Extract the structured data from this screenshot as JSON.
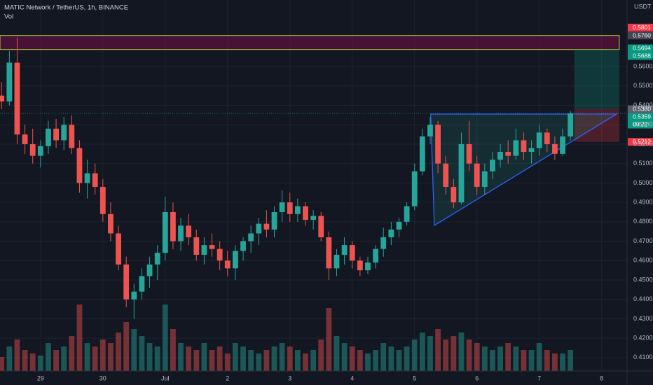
{
  "chart_data": {
    "type": "candlestick",
    "title": "MATIC Network / TetherUS, 1h, BINANCE",
    "volume_label": "Vol",
    "axis_unit": "USDT",
    "colors": {
      "up": "#26a69a",
      "down": "#ef5350"
    },
    "grid": true,
    "xlim": [
      8.4,
      249.8
    ],
    "ylim": [
      0.4031,
      0.5943
    ],
    "vlim": [
      0,
      100
    ],
    "xticks": [
      {
        "value": 24,
        "label": "29"
      },
      {
        "value": 48,
        "label": "30"
      },
      {
        "value": 72,
        "label": "Jul"
      },
      {
        "value": 96,
        "label": "2"
      },
      {
        "value": 120,
        "label": "3"
      },
      {
        "value": 144,
        "label": "4"
      },
      {
        "value": 168,
        "label": "5"
      },
      {
        "value": 192,
        "label": "6"
      },
      {
        "value": 216,
        "label": "7"
      },
      {
        "value": 240,
        "label": "8"
      }
    ],
    "yticks": [
      {
        "value": 0.56,
        "label": "0.5600"
      },
      {
        "value": 0.55,
        "label": "0.5500"
      },
      {
        "value": 0.54,
        "label": "0.5400"
      },
      {
        "value": 0.53,
        "label": "0.5300"
      },
      {
        "value": 0.52,
        "label": "0.5200"
      },
      {
        "value": 0.51,
        "label": "0.5100"
      },
      {
        "value": 0.5,
        "label": "0.5000"
      },
      {
        "value": 0.49,
        "label": "0.4900"
      },
      {
        "value": 0.48,
        "label": "0.4800"
      },
      {
        "value": 0.47,
        "label": "0.4700"
      },
      {
        "value": 0.46,
        "label": "0.4600"
      },
      {
        "value": 0.45,
        "label": "0.4500"
      },
      {
        "value": 0.44,
        "label": "0.4400"
      },
      {
        "value": 0.43,
        "label": "0.4300"
      },
      {
        "value": 0.42,
        "label": "0.4200"
      },
      {
        "value": 0.41,
        "label": "0.4100"
      }
    ],
    "x": [
      9,
      12,
      15,
      18,
      21,
      24,
      27,
      30,
      33,
      36,
      39,
      42,
      45,
      48,
      51,
      54,
      57,
      60,
      63,
      66,
      69,
      72,
      75,
      78,
      81,
      84,
      87,
      90,
      93,
      96,
      99,
      102,
      105,
      108,
      111,
      114,
      117,
      120,
      123,
      126,
      129,
      132,
      135,
      138,
      141,
      144,
      147,
      150,
      153,
      156,
      159,
      162,
      165,
      168,
      171,
      174,
      177,
      180,
      183,
      186,
      189,
      192,
      195,
      198,
      201,
      204,
      207,
      210,
      213,
      216,
      219,
      222,
      225,
      228
    ],
    "ohlc": [
      [
        0.545,
        0.552,
        0.538,
        0.542
      ],
      [
        0.542,
        0.568,
        0.54,
        0.562
      ],
      [
        0.562,
        0.575,
        0.52,
        0.525
      ],
      [
        0.525,
        0.53,
        0.515,
        0.52
      ],
      [
        0.52,
        0.528,
        0.51,
        0.514
      ],
      [
        0.514,
        0.522,
        0.508,
        0.519
      ],
      [
        0.519,
        0.532,
        0.515,
        0.528
      ],
      [
        0.528,
        0.533,
        0.518,
        0.522
      ],
      [
        0.522,
        0.534,
        0.517,
        0.53
      ],
      [
        0.53,
        0.535,
        0.515,
        0.518
      ],
      [
        0.518,
        0.522,
        0.495,
        0.5
      ],
      [
        0.5,
        0.512,
        0.492,
        0.505
      ],
      [
        0.505,
        0.51,
        0.494,
        0.498
      ],
      [
        0.498,
        0.502,
        0.48,
        0.484
      ],
      [
        0.484,
        0.49,
        0.47,
        0.474
      ],
      [
        0.474,
        0.478,
        0.455,
        0.458
      ],
      [
        0.458,
        0.462,
        0.436,
        0.44
      ],
      [
        0.44,
        0.448,
        0.43,
        0.444
      ],
      [
        0.444,
        0.456,
        0.44,
        0.452
      ],
      [
        0.452,
        0.462,
        0.446,
        0.458
      ],
      [
        0.458,
        0.468,
        0.45,
        0.464
      ],
      [
        0.464,
        0.493,
        0.46,
        0.485
      ],
      [
        0.485,
        0.49,
        0.466,
        0.47
      ],
      [
        0.47,
        0.482,
        0.465,
        0.478
      ],
      [
        0.478,
        0.484,
        0.468,
        0.472
      ],
      [
        0.472,
        0.476,
        0.46,
        0.463
      ],
      [
        0.463,
        0.472,
        0.458,
        0.468
      ],
      [
        0.468,
        0.474,
        0.462,
        0.466
      ],
      [
        0.466,
        0.47,
        0.455,
        0.46
      ],
      [
        0.46,
        0.465,
        0.452,
        0.456
      ],
      [
        0.456,
        0.468,
        0.45,
        0.465
      ],
      [
        0.465,
        0.472,
        0.46,
        0.47
      ],
      [
        0.47,
        0.478,
        0.464,
        0.474
      ],
      [
        0.474,
        0.482,
        0.468,
        0.479
      ],
      [
        0.479,
        0.486,
        0.472,
        0.476
      ],
      [
        0.476,
        0.488,
        0.472,
        0.485
      ],
      [
        0.485,
        0.496,
        0.48,
        0.49
      ],
      [
        0.49,
        0.495,
        0.48,
        0.484
      ],
      [
        0.484,
        0.492,
        0.48,
        0.488
      ],
      [
        0.488,
        0.49,
        0.478,
        0.481
      ],
      [
        0.481,
        0.486,
        0.476,
        0.483
      ],
      [
        0.483,
        0.485,
        0.47,
        0.472
      ],
      [
        0.472,
        0.475,
        0.45,
        0.456
      ],
      [
        0.456,
        0.466,
        0.452,
        0.463
      ],
      [
        0.463,
        0.472,
        0.458,
        0.468
      ],
      [
        0.468,
        0.47,
        0.456,
        0.46
      ],
      [
        0.46,
        0.462,
        0.452,
        0.455
      ],
      [
        0.455,
        0.462,
        0.453,
        0.459
      ],
      [
        0.459,
        0.468,
        0.456,
        0.466
      ],
      [
        0.466,
        0.477,
        0.462,
        0.472
      ],
      [
        0.472,
        0.48,
        0.468,
        0.476
      ],
      [
        0.476,
        0.482,
        0.472,
        0.48
      ],
      [
        0.48,
        0.49,
        0.478,
        0.488
      ],
      [
        0.488,
        0.51,
        0.486,
        0.506
      ],
      [
        0.506,
        0.528,
        0.504,
        0.524
      ],
      [
        0.524,
        0.534,
        0.52,
        0.53
      ],
      [
        0.53,
        0.532,
        0.505,
        0.51
      ],
      [
        0.51,
        0.514,
        0.494,
        0.498
      ],
      [
        0.498,
        0.502,
        0.487,
        0.49
      ],
      [
        0.49,
        0.526,
        0.489,
        0.52
      ],
      [
        0.52,
        0.532,
        0.506,
        0.51
      ],
      [
        0.51,
        0.514,
        0.494,
        0.498
      ],
      [
        0.498,
        0.51,
        0.494,
        0.506
      ],
      [
        0.506,
        0.516,
        0.502,
        0.512
      ],
      [
        0.512,
        0.52,
        0.508,
        0.516
      ],
      [
        0.516,
        0.522,
        0.51,
        0.514
      ],
      [
        0.514,
        0.528,
        0.512,
        0.522
      ],
      [
        0.522,
        0.526,
        0.512,
        0.516
      ],
      [
        0.516,
        0.522,
        0.51,
        0.518
      ],
      [
        0.518,
        0.53,
        0.514,
        0.526
      ],
      [
        0.526,
        0.528,
        0.516,
        0.52
      ],
      [
        0.52,
        0.524,
        0.512,
        0.515
      ],
      [
        0.515,
        0.528,
        0.514,
        0.524
      ],
      [
        0.524,
        0.5372,
        0.522,
        0.5359
      ]
    ],
    "volume": [
      20,
      35,
      45,
      30,
      25,
      22,
      40,
      30,
      35,
      50,
      95,
      40,
      35,
      45,
      40,
      55,
      70,
      60,
      50,
      40,
      35,
      95,
      60,
      40,
      35,
      30,
      40,
      30,
      35,
      25,
      40,
      35,
      30,
      25,
      30,
      35,
      40,
      35,
      30,
      25,
      30,
      45,
      90,
      50,
      40,
      35,
      30,
      25,
      30,
      40,
      35,
      30,
      35,
      45,
      55,
      50,
      60,
      45,
      50,
      55,
      45,
      40,
      35,
      30,
      35,
      40,
      35,
      30,
      30,
      40,
      30,
      25,
      25,
      30
    ],
    "zone": {
      "x": [
        8.4,
        246.8
      ],
      "y": [
        0.5688,
        0.576
      ]
    },
    "position": {
      "x": [
        229.5,
        246.8
      ],
      "entry": 0.538,
      "target": 0.5688,
      "stop": 0.5212
    },
    "triangle": {
      "x": [
        174.2,
        245.7,
        175.6
      ],
      "y": [
        0.5355,
        0.5355,
        0.4781
      ]
    },
    "last_price": 0.5359,
    "price_labels": [
      {
        "value": 0.5801,
        "label": "0.5801",
        "color": "#f23645"
      },
      {
        "value": 0.576,
        "label": "0.5760",
        "color": "#434651"
      },
      {
        "value": 0.5694,
        "label": "0.5694",
        "color": "#089981"
      },
      {
        "value": 0.5688,
        "label": "0.5688",
        "color": "#089981"
      },
      {
        "value": 0.538,
        "label": "0.5380",
        "color": "#5d606b"
      },
      {
        "value": 0.5359,
        "label": "0.5359",
        "color": "#089981",
        "sub": "09:22"
      },
      {
        "value": 0.5212,
        "label": "0.5212",
        "color": "#f23645"
      }
    ]
  }
}
